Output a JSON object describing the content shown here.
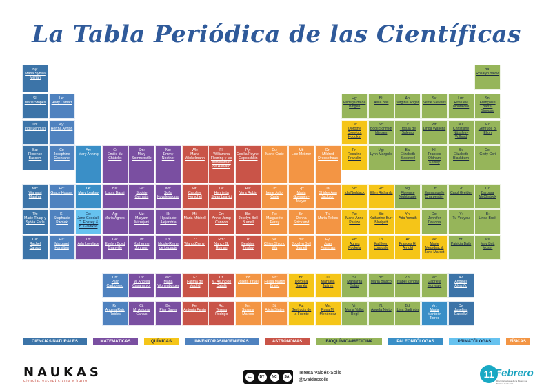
{
  "title": "La Tabla Periódica de las Científicas",
  "colors": {
    "ciencias_naturales": "#3c74a8",
    "matematicas": "#7a4fa1",
    "quimicas": "#f5c518",
    "inventoras_ingenieras": "#4f82bf",
    "astronomas": "#c95448",
    "bioquimica_medicina": "#96b55a",
    "paleontologas": "#3a8fc7",
    "primatologas": "#66c2ef",
    "fisicas": "#f39544"
  },
  "legend": [
    {
      "label": "CIENCIAS NATURALES",
      "color": "#3c74a8",
      "text_color": "#ffffff"
    },
    {
      "label": "MATEMÁTICAS",
      "color": "#7a4fa1",
      "text_color": "#ffffff"
    },
    {
      "label": "QUÍMICAS",
      "color": "#f5c518",
      "text_color": "#1a2a44"
    },
    {
      "label": "INVENTORAS/INGENIERAS",
      "color": "#4f82bf",
      "text_color": "#ffffff"
    },
    {
      "label": "ASTRÓNOMAS",
      "color": "#c95448",
      "text_color": "#ffffff"
    },
    {
      "label": "BIOQUÍMICA/MEDICINA",
      "color": "#96b55a",
      "text_color": "#1a2a44"
    },
    {
      "label": "PALEONTÓLOGAS",
      "color": "#3a8fc7",
      "text_color": "#ffffff"
    },
    {
      "label": "PRIMATÓLOGAS",
      "color": "#66c2ef",
      "text_color": "#1a2a44"
    },
    {
      "label": "FÍSICAS",
      "color": "#f39544",
      "text_color": "#ffffff"
    }
  ],
  "elements": [
    {
      "sym": "By:",
      "name": "Maria Sybilla Merian",
      "cat": "ciencias_naturales",
      "col": 1,
      "row": 1
    },
    {
      "sym": "Sl:",
      "name": "Marie Stopes",
      "cat": "ciencias_naturales",
      "col": 1,
      "row": 2
    },
    {
      "sym": "Le:",
      "name": "Hedy Lamarr",
      "cat": "inventoras_ingenieras",
      "col": 2,
      "row": 2
    },
    {
      "sym": "Lh:",
      "name": "Inge Lehman",
      "cat": "ciencias_naturales",
      "col": 1,
      "row": 3
    },
    {
      "sym": "Ay:",
      "name": "Hertha Ayrton",
      "cat": "inventoras_ingenieras",
      "col": 2,
      "row": 3
    },
    {
      "sym": "Ba:",
      "name": "Florence Bascom",
      "cat": "ciencias_naturales",
      "col": 1,
      "row": 4
    },
    {
      "sym": "Cr:",
      "name": "Josephine Cochrane",
      "cat": "inventoras_ingenieras",
      "col": 2,
      "row": 4
    },
    {
      "sym": "Mh:",
      "name": "Wangari Maathai",
      "cat": "ciencias_naturales",
      "col": 1,
      "row": 5
    },
    {
      "sym": "Ho:",
      "name": "Grace Hopper",
      "cat": "inventoras_ingenieras",
      "col": 2,
      "row": 5
    },
    {
      "sym": "Th:",
      "name": "Marie Tharp y Sylvia Earle",
      "cat": "ciencias_naturales",
      "col": 1,
      "row": 6
    },
    {
      "sym": "K:",
      "name": "Stephanie Kwolek",
      "cat": "inventoras_ingenieras",
      "col": 2,
      "row": 6
    },
    {
      "sym": "Ca:",
      "name": "Rachel Carson",
      "cat": "ciencias_naturales",
      "col": 1,
      "row": 7
    },
    {
      "sym": "Ha:",
      "name": "Margaret Hamilton",
      "cat": "inventoras_ingenieras",
      "col": 2,
      "row": 7
    },
    {
      "sym": "An:",
      "name": "Mary Anning",
      "cat": "paleontologas",
      "col": 3,
      "row": 4
    },
    {
      "sym": "C:",
      "name": "Emilie du Châtelet",
      "cat": "matematicas",
      "col": 4,
      "row": 4
    },
    {
      "sym": "Sm:",
      "name": "Mary Sommerville",
      "cat": "matematicas",
      "col": 5,
      "row": 4
    },
    {
      "sym": "No:",
      "name": "Emmy Noether",
      "cat": "matematicas",
      "col": 6,
      "row": 4
    },
    {
      "sym": "Wk:",
      "name": "Maria Winkelmann",
      "cat": "astronomas",
      "col": 7,
      "row": 4
    },
    {
      "sym": "Fl:",
      "name": "Williamina Fleming y las astrónomas de Harvard",
      "cat": "astronomas",
      "col": 8,
      "row": 4
    },
    {
      "sym": "Py:",
      "name": "Cecilia Payne-Gaposchkin",
      "cat": "astronomas",
      "col": 9,
      "row": 4
    },
    {
      "sym": "Cu:",
      "name": "Marie Curie",
      "cat": "fisicas",
      "col": 10,
      "row": 4
    },
    {
      "sym": "Mt:",
      "name": "Lise Meitner",
      "cat": "fisicas",
      "col": 11,
      "row": 4
    },
    {
      "sym": "Dr:",
      "name": "Mildred Dresselhaus",
      "cat": "fisicas",
      "col": 12,
      "row": 4
    },
    {
      "sym": "Lk:",
      "name": "Mary Leakey",
      "cat": "paleontologas",
      "col": 3,
      "row": 5
    },
    {
      "sym": "Bs:",
      "name": "Laura Bassi",
      "cat": "matematicas",
      "col": 4,
      "row": 5
    },
    {
      "sym": "Ge:",
      "name": "Sophie Germain",
      "cat": "matematicas",
      "col": 5,
      "row": 5
    },
    {
      "sym": "Ko:",
      "name": "Sofia Kovalevskaya",
      "cat": "matematicas",
      "col": 6,
      "row": 5
    },
    {
      "sym": "Hr:",
      "name": "Caroline Herschel",
      "cat": "astronomas",
      "col": 7,
      "row": 5
    },
    {
      "sym": "Lv:",
      "name": "Henrietta Swan Leavitt",
      "cat": "astronomas",
      "col": 8,
      "row": 5
    },
    {
      "sym": "Ru:",
      "name": "Vera Rubin",
      "cat": "astronomas",
      "col": 9,
      "row": 5
    },
    {
      "sym": "Jc:",
      "name": "Irene Joliot Curie",
      "cat": "fisicas",
      "col": 10,
      "row": 5
    },
    {
      "sym": "Gp:",
      "name": "Maria Goeppert-Mayer",
      "cat": "fisicas",
      "col": 11,
      "row": 5
    },
    {
      "sym": "Ja:",
      "name": "Shirley Ann Jackson",
      "cat": "fisicas",
      "col": 12,
      "row": 5
    },
    {
      "sym": "Gd:",
      "name": "Jane Goodall, D. Fossey & B. Galdikas",
      "cat": "primatologas",
      "col": 3,
      "row": 6
    },
    {
      "sym": "Ag:",
      "name": "Maria Agnesi",
      "cat": "matematicas",
      "col": 4,
      "row": 6
    },
    {
      "sym": "Mz:",
      "name": "Maryam Mirzajani",
      "cat": "matematicas",
      "col": 5,
      "row": 6
    },
    {
      "sym": "H:",
      "name": "Hipatia de Alejandría",
      "cat": "matematicas",
      "col": 6,
      "row": 6
    },
    {
      "sym": "Mi:",
      "name": "Maria Mitchell",
      "cat": "astronomas",
      "col": 7,
      "row": 6
    },
    {
      "sym": "Cn:",
      "name": "Annie Jump Cannon",
      "cat": "astronomas",
      "col": 8,
      "row": 6
    },
    {
      "sym": "Be:",
      "name": "Jocelyn Bell Burnell",
      "cat": "astronomas",
      "col": 9,
      "row": 6
    },
    {
      "sym": "Pe:",
      "name": "Marguerite Perey",
      "cat": "fisicas",
      "col": 10,
      "row": 6
    },
    {
      "sym": "Sr:",
      "name": "Donna Strickland",
      "cat": "fisicas",
      "col": 11,
      "row": 6
    },
    {
      "sym": "Tk:",
      "name": "Maria Telkes",
      "cat": "fisicas",
      "col": 12,
      "row": 6
    },
    {
      "sym": "Lo:",
      "name": "Ada Lovelace",
      "cat": "matematicas",
      "col": 3,
      "row": 7
    },
    {
      "sym": "Gv:",
      "name": "Evelyn Boyd Granville",
      "cat": "matematicas",
      "col": 4,
      "row": 7
    },
    {
      "sym": "Jh:",
      "name": "Katherine Johnson",
      "cat": "matematicas",
      "col": 5,
      "row": 7
    },
    {
      "sym": "Lp:",
      "name": "Nicole-Reine de Lepaute",
      "cat": "matematicas",
      "col": 6,
      "row": 7
    },
    {
      "sym": "Z:",
      "name": "Wang Zhenyi",
      "cat": "astronomas",
      "col": 7,
      "row": 7
    },
    {
      "sym": "Rm:",
      "name": "Nancy G. Roman",
      "cat": "astronomas",
      "col": 8,
      "row": 7
    },
    {
      "sym": "Ti:",
      "name": "Beatrice Tinsley",
      "cat": "astronomas",
      "col": 9,
      "row": 7
    },
    {
      "sym": "W:",
      "name": "Chien Shiung Wu",
      "cat": "fisicas",
      "col": 10,
      "row": 7
    },
    {
      "sym": "Bu:",
      "name": "Jocelyn Bell Burnell",
      "cat": "fisicas",
      "col": 11,
      "row": 7
    },
    {
      "sym": "Fy:",
      "name": "Joan Feynman",
      "cat": "fisicas",
      "col": 12,
      "row": 7
    },
    {
      "sym": "Ca:",
      "name": "Dorothy Crowfoot Hodgkin",
      "cat": "quimicas",
      "col": 13,
      "row": 3
    },
    {
      "sym": "Fr:",
      "name": "Rosalind Franklin",
      "cat": "quimicas",
      "col": 13,
      "row": 4
    },
    {
      "sym": "Nd:",
      "name": "Ida Noddack",
      "cat": "quimicas",
      "col": 13,
      "row": 5
    },
    {
      "sym": "Pa:",
      "name": "Marie Anne Paulze",
      "cat": "quimicas",
      "col": 13,
      "row": 6
    },
    {
      "sym": "Po:",
      "name": "Agnes Pockels",
      "cat": "quimicas",
      "col": 13,
      "row": 7
    },
    {
      "sym": "Hg:",
      "name": "Hildegarda de Bingen",
      "cat": "bioquimica_medicina",
      "col": 13,
      "row": 2
    },
    {
      "sym": "Bl:",
      "name": "Alice Ball",
      "cat": "bioquimica_medicina",
      "col": 14,
      "row": 2
    },
    {
      "sym": "Ap:",
      "name": "Virginia Apgar",
      "cat": "bioquimica_medicina",
      "col": 15,
      "row": 2
    },
    {
      "sym": "Sv:",
      "name": "Nettie Stevens",
      "cat": "bioquimica_medicina",
      "col": 16,
      "row": 2
    },
    {
      "sym": "Lm:",
      "name": "Rita Levi Montalcini",
      "cat": "bioquimica_medicina",
      "col": 17,
      "row": 2
    },
    {
      "sym": "Sn:",
      "name": "Françoise Barré-Sinoussi",
      "cat": "bioquimica_medicina",
      "col": 18,
      "row": 2
    },
    {
      "sym": "Ya:",
      "name": "Rosalyn Yalow",
      "cat": "bioquimica_medicina",
      "col": 18,
      "row": 1
    },
    {
      "sym": "Sc:",
      "name": "Bodil Schmidt Nielsen",
      "cat": "bioquimica_medicina",
      "col": 14,
      "row": 3
    },
    {
      "sym": "T:",
      "name": "Trótula de Salerno",
      "cat": "bioquimica_medicina",
      "col": 15,
      "row": 3
    },
    {
      "sym": "Wt:",
      "name": "Linda Watkins",
      "cat": "bioquimica_medicina",
      "col": 16,
      "row": 3
    },
    {
      "sym": "Nu:",
      "name": "Christiane Nüsslein-Volhard",
      "cat": "bioquimica_medicina",
      "col": 17,
      "row": 3
    },
    {
      "sym": "El:",
      "name": "Gertrude B. Elion",
      "cat": "bioquimica_medicina",
      "col": 18,
      "row": 3
    },
    {
      "sym": "Mg:",
      "name": "Lynn Margulis",
      "cat": "bioquimica_medicina",
      "col": 14,
      "row": 4
    },
    {
      "sym": "Ba:",
      "name": "Elizabeth Blackwell",
      "cat": "bioquimica_medicina",
      "col": 15,
      "row": 4
    },
    {
      "sym": "Kl:",
      "name": "Frances Oldham Kelsey",
      "cat": "bioquimica_medicina",
      "col": 16,
      "row": 4
    },
    {
      "sym": "Bk:",
      "name": "Elizabeth Blackburn",
      "cat": "bioquimica_medicina",
      "col": 17,
      "row": 4
    },
    {
      "sym": "Co:",
      "name": "Gerty Cori",
      "cat": "bioquimica_medicina",
      "col": 18,
      "row": 4
    },
    {
      "sym": "Rc:",
      "name": "Ellen Richards",
      "cat": "quimicas",
      "col": 14,
      "row": 5
    },
    {
      "sym": "Ng:",
      "name": "Florence Nightingale",
      "cat": "bioquimica_medicina",
      "col": 15,
      "row": 5
    },
    {
      "sym": "Ch:",
      "name": "Emmanuelle Charpentier",
      "cat": "bioquimica_medicina",
      "col": 16,
      "row": 5
    },
    {
      "sym": "Gr:",
      "name": "Carol Greider",
      "cat": "bioquimica_medicina",
      "col": 17,
      "row": 5
    },
    {
      "sym": "Cl:",
      "name": "Barbara McClintock",
      "cat": "bioquimica_medicina",
      "col": 18,
      "row": 5
    },
    {
      "sym": "Bb:",
      "name": "Katharine Burr Blodgett",
      "cat": "quimicas",
      "col": 14,
      "row": 6
    },
    {
      "sym": "Yn:",
      "name": "Ada Yonath",
      "cat": "quimicas",
      "col": 15,
      "row": 6
    },
    {
      "sym": "Do:",
      "name": "Jennifer Doudna",
      "cat": "bioquimica_medicina",
      "col": 16,
      "row": 6
    },
    {
      "sym": "Y:",
      "name": "Tu Youyou",
      "cat": "bioquimica_medicina",
      "col": 17,
      "row": 6
    },
    {
      "sym": "B:",
      "name": "Linda Buck",
      "cat": "bioquimica_medicina",
      "col": 18,
      "row": 6
    },
    {
      "sym": "Ln:",
      "name": "Kathleen Lonsdale",
      "cat": "quimicas",
      "col": 14,
      "row": 7
    },
    {
      "sym": "Al:",
      "name": "Frances H. Arnold",
      "cat": "quimicas",
      "col": 15,
      "row": 7
    },
    {
      "sym": "Me:",
      "name": "Marie Meurdrac & Jane Marcet",
      "cat": "quimicas",
      "col": 16,
      "row": 7
    },
    {
      "sym": "Bt:",
      "name": "Patricia Bath",
      "cat": "bioquimica_medicina",
      "col": 17,
      "row": 7
    },
    {
      "sym": "Ms:",
      "name": "May Britt Moser",
      "cat": "bioquimica_medicina",
      "col": 18,
      "row": 7
    },
    {
      "sym": "Cb:",
      "name": "Pilar Carbonero",
      "cat": "inventoras_ingenieras",
      "col": 4,
      "row": 9
    },
    {
      "sym": "Cs:",
      "name": "M. Andrea Casamayor",
      "cat": "matematicas",
      "col": 5,
      "row": 9
    },
    {
      "sym": "Wo:",
      "name": "Maria Wonenburger",
      "cat": "matematicas",
      "col": 6,
      "row": 9
    },
    {
      "sym": "F:",
      "name": "Fátima de Madrid",
      "cat": "astronomas",
      "col": 7,
      "row": 9
    },
    {
      "sym": "Ct:",
      "name": "M. Asunción Català",
      "cat": "astronomas",
      "col": 8,
      "row": 9
    },
    {
      "sym": "Yz:",
      "name": "Josefa Yzuel",
      "cat": "fisicas",
      "col": 9,
      "row": 9
    },
    {
      "sym": "Mb:",
      "name": "Felisa Martín Bravo",
      "cat": "fisicas",
      "col": 10,
      "row": 9
    },
    {
      "sym": "Br:",
      "name": "Dorotea Barnés",
      "cat": "quimicas",
      "col": 11,
      "row": 9
    },
    {
      "sym": "Ju:",
      "name": "Manuela Juárez",
      "cat": "quimicas",
      "col": 12,
      "row": 9
    },
    {
      "sym": "Sl:",
      "name": "Margarita Salas",
      "cat": "bioquimica_medicina",
      "col": 13,
      "row": 9
    },
    {
      "sym": "Bc:",
      "name": "Maria Blasco",
      "cat": "bioquimica_medicina",
      "col": 14,
      "row": 9
    },
    {
      "sym": "Zn:",
      "name": "Isabel Zendal",
      "cat": "bioquimica_medicina",
      "col": 15,
      "row": 9
    },
    {
      "sym": "Mo:",
      "name": "Gabriela Morreale",
      "cat": "bioquimica_medicina",
      "col": 16,
      "row": 9
    },
    {
      "sym": "Av:",
      "name": "Angeles Alvariño",
      "cat": "ciencias_naturales",
      "col": 17,
      "row": 9
    },
    {
      "sym": "Rr:",
      "name": "Angela Ruiz Robles",
      "cat": "inventoras_ingenieras",
      "col": 4,
      "row": 10
    },
    {
      "sym": "Ct:",
      "name": "M. Antonia Canals",
      "cat": "matematicas",
      "col": 5,
      "row": 10
    },
    {
      "sym": "By:",
      "name": "Pilar Bayer",
      "cat": "matematicas",
      "col": 6,
      "row": 10
    },
    {
      "sym": "Fe:",
      "name": "Antonia Ferrin",
      "cat": "astronomas",
      "col": 7,
      "row": 10
    },
    {
      "sym": "Rd:",
      "name": "Teresa Rodrigo",
      "cat": "astronomas",
      "col": 8,
      "row": 10
    },
    {
      "sym": "Mr:",
      "name": "Susana Marcos",
      "cat": "fisicas",
      "col": 9,
      "row": 10
    },
    {
      "sym": "St:",
      "name": "Alicia Sintes",
      "cat": "fisicas",
      "col": 10,
      "row": 10
    },
    {
      "sym": "Fu:",
      "name": "Gertrudis de la Fuente",
      "cat": "quimicas",
      "col": 11,
      "row": 10
    },
    {
      "sym": "Mn:",
      "name": "Rosa M. Menéndez",
      "cat": "quimicas",
      "col": 12,
      "row": 10
    },
    {
      "sym": "Vr:",
      "name": "Maria Vallet Regí",
      "cat": "bioquimica_medicina",
      "col": 13,
      "row": 10
    },
    {
      "sym": "N:",
      "name": "Angela Nieto",
      "cat": "bioquimica_medicina",
      "col": 14,
      "row": 10
    },
    {
      "sym": "Bd:",
      "name": "Lina Badimón",
      "cat": "bioquimica_medicina",
      "col": 15,
      "row": 10
    },
    {
      "sym": "Mn:",
      "name": "Maria Martinón Torres",
      "cat": "paleontologas",
      "col": 16,
      "row": 10
    },
    {
      "sym": "Cv:",
      "name": "Josefina Castellví",
      "cat": "ciencias_naturales",
      "col": 17,
      "row": 10
    }
  ],
  "footer": {
    "brand": "NAUKAS",
    "brand_tagline": "ciencia, escepticismo y humor",
    "license": [
      "cc",
      "BY",
      "NC",
      "SA"
    ],
    "author_name": "Teresa Valdés-Solís",
    "author_handle": "@tvaldessolis",
    "partner_number": "11",
    "partner_word": "Febrero",
    "partner_tagline": "Día Internacional de la Mujer y la Niña en la Ciencia"
  }
}
